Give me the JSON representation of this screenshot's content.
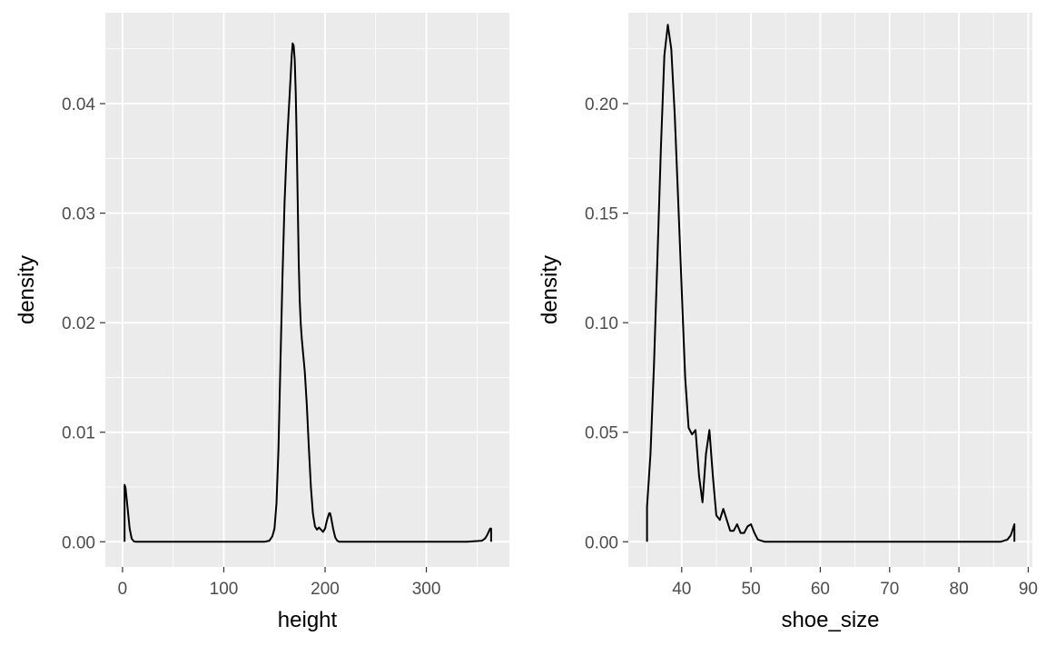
{
  "chart_data": [
    {
      "type": "line",
      "title": "",
      "xlabel": "height",
      "ylabel": "density",
      "xlim": [
        -17,
        382
      ],
      "ylim": [
        -0.0023,
        0.0483
      ],
      "xticks": [
        0,
        100,
        200,
        300
      ],
      "xtick_labels": [
        "0",
        "100",
        "200",
        "300"
      ],
      "yticks": [
        0,
        0.01,
        0.02,
        0.03,
        0.04
      ],
      "ytick_labels": [
        "0.00",
        "0.01",
        "0.02",
        "0.03",
        "0.04"
      ],
      "grid": true,
      "series": [
        {
          "x": [
            2,
            2,
            3,
            5,
            7,
            9,
            11,
            13,
            20,
            60,
            100,
            140,
            145,
            148,
            150,
            152,
            154,
            156,
            158,
            160,
            162,
            163,
            164,
            165,
            166,
            167,
            168,
            169,
            170,
            171,
            172,
            173,
            174,
            175,
            176,
            177,
            178,
            180,
            182,
            184,
            186,
            188,
            190,
            192,
            194,
            196,
            198,
            200,
            202,
            204,
            205,
            206,
            208,
            210,
            212,
            214,
            220,
            260,
            300,
            340,
            355,
            358,
            360,
            362,
            363,
            364,
            364
          ],
          "y": [
            0,
            0.0052,
            0.0049,
            0.0031,
            0.0012,
            0.0003,
            5e-05,
            0,
            0,
            0,
            0,
            0,
            0.0001,
            0.0005,
            0.0012,
            0.0035,
            0.0085,
            0.0165,
            0.0245,
            0.031,
            0.0355,
            0.0375,
            0.0392,
            0.0408,
            0.0425,
            0.0443,
            0.0455,
            0.0453,
            0.044,
            0.041,
            0.0365,
            0.031,
            0.0255,
            0.022,
            0.0198,
            0.0185,
            0.0175,
            0.0155,
            0.0125,
            0.0085,
            0.005,
            0.0026,
            0.0014,
            0.0011,
            0.0013,
            0.0011,
            0.0009,
            0.0012,
            0.002,
            0.0026,
            0.0026,
            0.0022,
            0.0012,
            0.0004,
            0.0001,
            0,
            0,
            0,
            0,
            0,
            0.0001,
            0.0003,
            0.0006,
            0.001,
            0.0012,
            0.0012,
            0
          ]
        }
      ]
    },
    {
      "type": "line",
      "title": "",
      "xlabel": "shoe_size",
      "ylabel": "density",
      "xlim": [
        32.3,
        90.6
      ],
      "ylim": [
        -0.0115,
        0.2415
      ],
      "xticks": [
        40,
        50,
        60,
        70,
        80,
        90
      ],
      "xtick_labels": [
        "40",
        "50",
        "60",
        "70",
        "80",
        "90"
      ],
      "yticks": [
        0,
        0.05,
        0.1,
        0.15,
        0.2
      ],
      "ytick_labels": [
        "0.00",
        "0.05",
        "0.10",
        "0.15",
        "0.20"
      ],
      "grid": true,
      "series": [
        {
          "x": [
            35,
            35,
            35.5,
            36,
            36.5,
            37,
            37.5,
            38,
            38.5,
            39,
            39.5,
            40,
            40.5,
            41,
            41.5,
            42,
            42.5,
            43,
            43.5,
            44,
            44.5,
            45,
            45.5,
            46,
            46.5,
            47,
            47.5,
            48,
            48.5,
            49,
            49.5,
            50,
            50.5,
            51,
            52,
            60,
            70,
            80,
            86,
            87,
            87.5,
            88,
            88
          ],
          "y": [
            0,
            0.016,
            0.04,
            0.08,
            0.13,
            0.18,
            0.222,
            0.236,
            0.225,
            0.195,
            0.155,
            0.115,
            0.075,
            0.052,
            0.049,
            0.051,
            0.03,
            0.018,
            0.04,
            0.051,
            0.03,
            0.012,
            0.01,
            0.015,
            0.01,
            0.005,
            0.005,
            0.008,
            0.004,
            0.004,
            0.007,
            0.008,
            0.004,
            0.001,
            0,
            0,
            0,
            0,
            0,
            0.001,
            0.003,
            0.008,
            0
          ]
        }
      ]
    }
  ]
}
